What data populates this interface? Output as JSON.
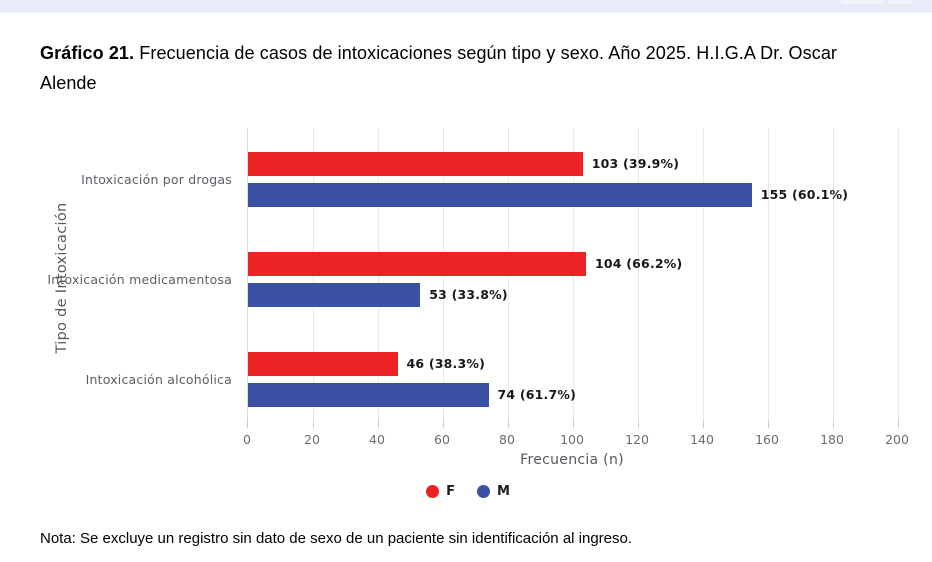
{
  "page": {
    "background": "#ffffff",
    "top_stripe_color": "#e7ecf8"
  },
  "title": {
    "prefix": "Gráfico 21.",
    "rest": " Frecuencia de casos de intoxicaciones según tipo y sexo. Año 2025. H.I.G.A Dr. Oscar Alende"
  },
  "chart_data": {
    "type": "bar",
    "orientation": "horizontal",
    "categories": [
      "Intoxicación por drogas",
      "Intoxicación medicamentosa",
      "Intoxicación alcohólica"
    ],
    "series": [
      {
        "name": "F",
        "color": "#ed2224",
        "values": [
          103,
          104,
          46
        ],
        "data_labels": [
          "103 (39.9%)",
          "104 (66.2%)",
          "46 (38.3%)"
        ]
      },
      {
        "name": "M",
        "color": "#3b52a4",
        "values": [
          155,
          53,
          74
        ],
        "data_labels": [
          "155 (60.1%)",
          "53 (33.8%)",
          "74 (61.7%)"
        ]
      }
    ],
    "xlabel": "Frecuencia (n)",
    "ylabel": "Tipo de Intoxicación",
    "xlim": [
      0,
      200
    ],
    "x_ticks": [
      0,
      20,
      40,
      60,
      80,
      100,
      120,
      140,
      160,
      180,
      200
    ],
    "grid": true,
    "legend_position": "bottom",
    "legend": [
      {
        "label": "F",
        "color": "#ed2224"
      },
      {
        "label": "M",
        "color": "#3b52a4"
      }
    ]
  },
  "note": "Nota: Se excluye un registro sin dato de sexo de un paciente sin identificación al ingreso."
}
